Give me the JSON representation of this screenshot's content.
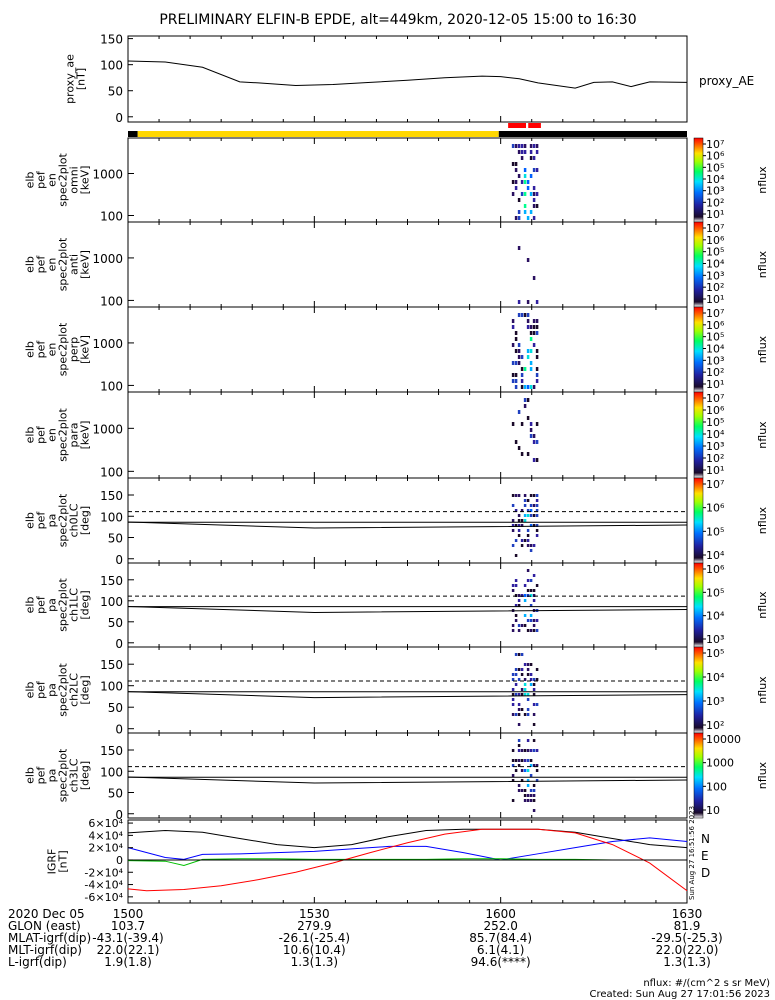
{
  "title": "PRELIMINARY ELFIN-B EPDE, alt=449km, 2020-12-05 15:00 to 16:30",
  "time_ticks": [
    "1500",
    "1530",
    "1600",
    "1630"
  ],
  "date_label": "2020 Dec 05",
  "ephemeris": [
    {
      "label": "GLON (east)",
      "values": [
        "103.7",
        "279.9",
        "252.0",
        "81.9"
      ]
    },
    {
      "label": "MLAT-igrf(dip)",
      "values": [
        "-43.1(-39.4)",
        "-26.1(-25.4)",
        "85.7(84.4)",
        "-29.5(-25.3)"
      ]
    },
    {
      "label": "MLT-igrf(dip)",
      "values": [
        "22.0(22.1)",
        "10.6(10.4)",
        "6.1(4.1)",
        "22.0(22.0)"
      ]
    },
    {
      "label": "L-igrf(dip)",
      "values": [
        "1.9(1.8)",
        "1.3(1.3)",
        "94.6(****)",
        "1.3(1.3)"
      ]
    }
  ],
  "footer": {
    "units": "nflux: #/(cm^2 s sr MeV)",
    "created": "Created: Sun Aug 27 17:01:56 2023",
    "side_stamp": "Sun Aug 27 16:51:56 2023"
  },
  "chart_data": [
    {
      "type": "line",
      "name": "proxy_ae",
      "ylabel": [
        "proxy_ae",
        "[nT]"
      ],
      "ylim": [
        -10,
        155
      ],
      "yticks": [
        "0",
        "50",
        "100",
        "150"
      ],
      "legend": "proxy_AE",
      "series": [
        {
          "name": "proxy_AE",
          "x": [
            15.0,
            15.1,
            15.2,
            15.3,
            15.35,
            15.45,
            15.55,
            15.65,
            15.75,
            15.85,
            15.95,
            16.0,
            16.05,
            16.1,
            16.2,
            16.25,
            16.3,
            16.35,
            16.4,
            16.5
          ],
          "y": [
            107,
            105,
            95,
            67,
            65,
            60,
            62,
            66,
            70,
            75,
            78,
            77,
            73,
            65,
            55,
            66,
            67,
            58,
            67,
            66
          ]
        }
      ]
    },
    {
      "type": "timebar",
      "name": "science-zone-bar",
      "segments": [
        {
          "start": 15.0,
          "end": 15.026,
          "color": "#000000"
        },
        {
          "start": 15.026,
          "end": 15.995,
          "color": "#ffd700"
        },
        {
          "start": 15.995,
          "end": 16.5,
          "color": "#000000"
        }
      ],
      "markers": [
        {
          "start": 16.02,
          "end": 16.068,
          "color": "#ff0000"
        },
        {
          "start": 16.074,
          "end": 16.108,
          "color": "#ff0000"
        }
      ]
    },
    {
      "type": "heatmap",
      "name": "elb_pef_en_spec2plot_omni",
      "ylabel": [
        "elb",
        "pef",
        "en",
        "spec2plot",
        "omni",
        "[keV]"
      ],
      "ytick_labels": [
        "100",
        "1000"
      ],
      "yscale": "log",
      "ylim": [
        70,
        7000
      ],
      "burst_x": [
        16.03,
        16.1
      ],
      "colorbar": {
        "scale": "log",
        "ticks": [
          "10¹",
          "10²",
          "10³",
          "10⁴",
          "10⁵",
          "10⁶",
          "10⁷"
        ],
        "label": "nflux"
      }
    },
    {
      "type": "heatmap",
      "name": "elb_pef_en_spec2plot_anti",
      "ylabel": [
        "elb",
        "pef",
        "en",
        "spec2plot",
        "anti",
        "[keV]"
      ],
      "ytick_labels": [
        "100",
        "1000"
      ],
      "yscale": "log",
      "ylim": [
        70,
        7000
      ],
      "burst_x": [
        16.03,
        16.1
      ],
      "colorbar": {
        "scale": "log",
        "ticks": [
          "10¹",
          "10²",
          "10³",
          "10⁴",
          "10⁵",
          "10⁶",
          "10⁷"
        ],
        "label": "nflux"
      }
    },
    {
      "type": "heatmap",
      "name": "elb_pef_en_spec2plot_perp",
      "ylabel": [
        "elb",
        "pef",
        "en",
        "spec2plot",
        "perp",
        "[keV]"
      ],
      "ytick_labels": [
        "100",
        "1000"
      ],
      "yscale": "log",
      "ylim": [
        70,
        7000
      ],
      "burst_x": [
        16.03,
        16.1
      ],
      "colorbar": {
        "scale": "log",
        "ticks": [
          "10¹",
          "10²",
          "10³",
          "10⁴",
          "10⁵",
          "10⁶",
          "10⁷"
        ],
        "label": "nflux"
      }
    },
    {
      "type": "heatmap",
      "name": "elb_pef_en_spec2plot_para",
      "ylabel": [
        "elb",
        "pef",
        "en",
        "spec2plot",
        "para",
        "[keV]"
      ],
      "ytick_labels": [
        "100",
        "1000"
      ],
      "yscale": "log",
      "ylim": [
        70,
        7000
      ],
      "burst_x": [
        16.03,
        16.1
      ],
      "colorbar": {
        "scale": "log",
        "ticks": [
          "10¹",
          "10²",
          "10³",
          "10⁴",
          "10⁵",
          "10⁶",
          "10⁷"
        ],
        "label": "nflux"
      }
    },
    {
      "type": "heatmap",
      "name": "elb_pef_pa_spec2plot_ch0LC",
      "ylabel": [
        "elb",
        "pef",
        "pa",
        "spec2plot",
        "ch0LC",
        "[deg]"
      ],
      "ytick_labels": [
        "0",
        "50",
        "100",
        "150"
      ],
      "ylim": [
        -10,
        190
      ],
      "lc_solid": 86,
      "lc_solid2": 77,
      "lc_dashed": 111,
      "burst_x": [
        16.03,
        16.1
      ],
      "colorbar": {
        "scale": "log",
        "ticks": [
          "10⁴",
          "10⁵",
          "10⁶",
          "10⁷"
        ],
        "label": "nflux"
      }
    },
    {
      "type": "heatmap",
      "name": "elb_pef_pa_spec2plot_ch1LC",
      "ylabel": [
        "elb",
        "pef",
        "pa",
        "spec2plot",
        "ch1LC",
        "[deg]"
      ],
      "ytick_labels": [
        "0",
        "50",
        "100",
        "150"
      ],
      "ylim": [
        -10,
        190
      ],
      "lc_solid": 86,
      "lc_solid2": 77,
      "lc_dashed": 111,
      "burst_x": [
        16.03,
        16.1
      ],
      "colorbar": {
        "scale": "log",
        "ticks": [
          "10³",
          "10⁴",
          "10⁵",
          "10⁶"
        ],
        "label": "nflux"
      }
    },
    {
      "type": "heatmap",
      "name": "elb_pef_pa_spec2plot_ch2LC",
      "ylabel": [
        "elb",
        "pef",
        "pa",
        "spec2plot",
        "ch2LC",
        "[deg]"
      ],
      "ytick_labels": [
        "0",
        "50",
        "100",
        "150"
      ],
      "ylim": [
        -10,
        190
      ],
      "lc_solid": 86,
      "lc_solid2": 77,
      "lc_dashed": 111,
      "burst_x": [
        16.03,
        16.1
      ],
      "colorbar": {
        "scale": "log",
        "ticks": [
          "10²",
          "10³",
          "10⁴",
          "10⁵"
        ],
        "label": "nflux"
      }
    },
    {
      "type": "heatmap",
      "name": "elb_pef_pa_spec2plot_ch3LC",
      "ylabel": [
        "elb",
        "pef",
        "pa",
        "spec2plot",
        "ch3LC",
        "[deg]"
      ],
      "ytick_labels": [
        "0",
        "50",
        "100",
        "150"
      ],
      "ylim": [
        -10,
        190
      ],
      "lc_solid": 86,
      "lc_solid2": 77,
      "lc_dashed": 111,
      "burst_x": [
        16.03,
        16.1
      ],
      "colorbar": {
        "scale": "linear-log",
        "ticks": [
          "10",
          "100",
          "1000",
          "10000"
        ],
        "label": "nflux"
      }
    },
    {
      "type": "line",
      "name": "IGRF",
      "ylabel": [
        "IGRF",
        "[nT]"
      ],
      "ylim": [
        -70000,
        65000
      ],
      "ytick_labels": [
        "6×10⁴",
        "4×10⁴",
        "2×10⁴",
        "0",
        "-2×10⁴",
        "-4×10⁴",
        "-6×10⁴"
      ],
      "yticks": [
        60000,
        40000,
        20000,
        0,
        -20000,
        -40000,
        -60000
      ],
      "legend_labels": [
        "N",
        "E",
        "D"
      ],
      "series": [
        {
          "color": "#000000",
          "x": [
            15.0,
            15.1,
            15.2,
            15.3,
            15.4,
            15.5,
            15.6,
            15.7,
            15.8,
            15.9,
            16.0,
            16.1,
            16.2,
            16.3,
            16.4,
            16.5
          ],
          "y": [
            44000,
            48000,
            45000,
            35000,
            25000,
            20000,
            25000,
            38000,
            48000,
            50000,
            50000,
            50000,
            45000,
            35000,
            25000,
            20000
          ]
        },
        {
          "color": "#0000ff",
          "x": [
            15.0,
            15.1,
            15.15,
            15.2,
            15.3,
            15.4,
            15.5,
            15.6,
            15.7,
            15.8,
            15.9,
            16.0,
            16.1,
            16.2,
            16.3,
            16.4,
            16.5
          ],
          "y": [
            20000,
            4000,
            1000,
            9000,
            10000,
            12000,
            14000,
            18000,
            22000,
            22000,
            12000,
            0,
            10000,
            20000,
            30000,
            36000,
            30000
          ]
        },
        {
          "color": "#00c000",
          "x": [
            15.0,
            15.1,
            15.15,
            15.2,
            15.3,
            15.4,
            15.5,
            15.6,
            15.7,
            15.8,
            15.9,
            16.0,
            16.1,
            16.2,
            16.3,
            16.4,
            16.5
          ],
          "y": [
            -1000,
            -2000,
            -9000,
            1000,
            2000,
            2000,
            1000,
            1000,
            1000,
            1000,
            2000,
            2000,
            1000,
            1000,
            0,
            0,
            0
          ]
        },
        {
          "color": "#ff0000",
          "x": [
            15.0,
            15.05,
            15.15,
            15.25,
            15.35,
            15.45,
            15.55,
            15.65,
            15.75,
            15.85,
            15.95,
            16.05,
            16.1,
            16.2,
            16.3,
            16.4,
            16.5
          ],
          "y": [
            -47000,
            -50000,
            -48000,
            -42000,
            -32000,
            -20000,
            -5000,
            12000,
            28000,
            42000,
            50000,
            50000,
            50000,
            44000,
            25000,
            -5000,
            -50000
          ]
        }
      ]
    }
  ]
}
